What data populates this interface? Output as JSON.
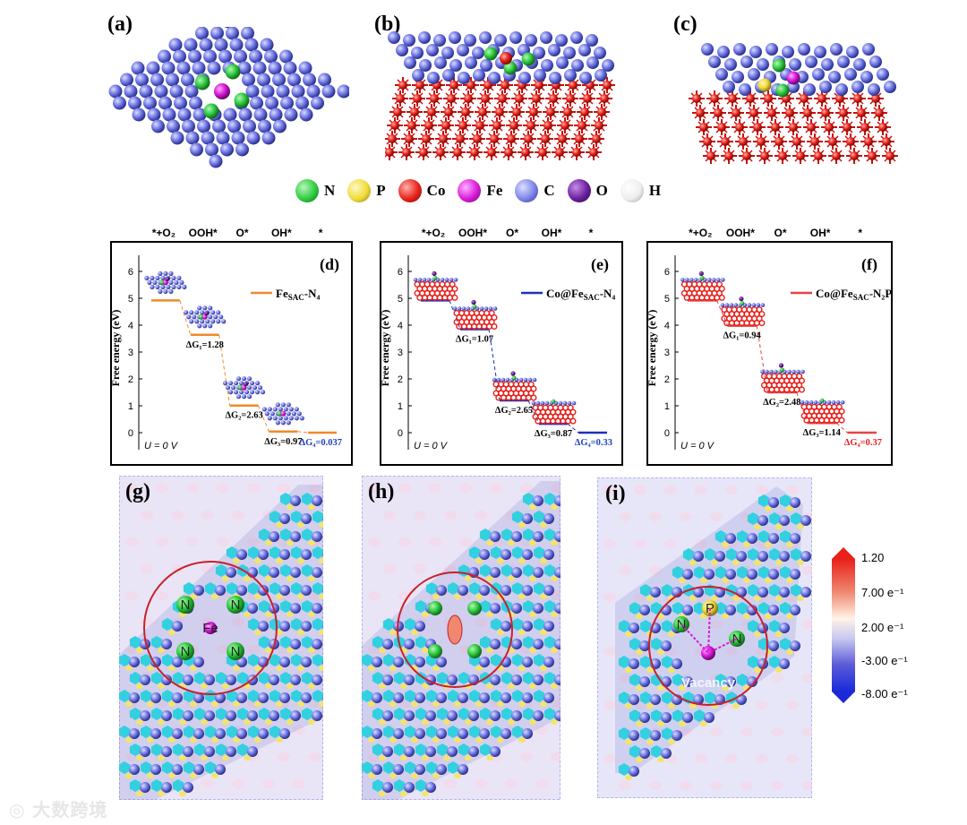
{
  "figure": {
    "panel_labels": [
      "(a)",
      "(b)",
      "(c)",
      "(d)",
      "(e)",
      "(f)",
      "(g)",
      "(h)",
      "(i)"
    ],
    "legend": [
      {
        "symbol": "N",
        "color": "#2ecc40"
      },
      {
        "symbol": "P",
        "color": "#f0dc3a"
      },
      {
        "symbol": "Co",
        "color": "#e8211b"
      },
      {
        "symbol": "Fe",
        "color": "#d81ad8"
      },
      {
        "symbol": "C",
        "color": "#7d84e8"
      },
      {
        "symbol": "O",
        "color": "#6b1f9b"
      },
      {
        "symbol": "H",
        "color": "#f2f2f2"
      }
    ],
    "charge_maps": {
      "g": {
        "atom_labels": [
          "N",
          "N",
          "Fe",
          "N",
          "N"
        ]
      },
      "h": {
        "atom_labels": []
      },
      "i": {
        "atom_labels": [
          "N",
          "P",
          "N"
        ],
        "annotation": "Vacancy"
      }
    },
    "colorbar": {
      "ticks": [
        "1.20",
        "7.00 e⁻¹",
        "2.00 e⁻¹",
        "-3.00 e⁻¹",
        "-8.00 e⁻¹"
      ],
      "colors": [
        "#e8211b",
        "#ffffff",
        "#1a2ad8"
      ]
    },
    "watermark": "大数跨境"
  },
  "chart_data": [
    {
      "id": "d",
      "type": "line",
      "title": "",
      "ylabel": "Free energy (eV)",
      "ylim": [
        -0.3,
        6.6
      ],
      "yticks": [
        0,
        1,
        2,
        3,
        4,
        5,
        6
      ],
      "categories": [
        "*+O₂",
        "OOH*",
        "O*",
        "OH*",
        "*"
      ],
      "series": [
        {
          "name": "FeSAC-N4",
          "values": [
            4.92,
            3.64,
            1.01,
            0.04,
            0.0
          ]
        }
      ],
      "color": "#f0892b",
      "legend": {
        "main": "Fe",
        "sub": "SAC",
        "tail": "-N₄"
      },
      "step_labels": [
        "ΔG₁=1.28",
        "ΔG₂=2.63",
        "ΔG₃=0.97",
        "ΔG₄=0.037"
      ],
      "limiting_color": "#1f3fbf",
      "u_label": "U = 0 V"
    },
    {
      "id": "e",
      "type": "line",
      "title": "",
      "ylabel": "Free energy (eV)",
      "ylim": [
        -0.3,
        6.6
      ],
      "yticks": [
        0,
        1,
        2,
        3,
        4,
        5,
        6
      ],
      "categories": [
        "*+O₂",
        "OOH*",
        "O*",
        "OH*",
        "*"
      ],
      "series": [
        {
          "name": "Co@FeSAC-N4",
          "values": [
            4.92,
            3.85,
            1.2,
            0.33,
            0.0
          ]
        }
      ],
      "color": "#1f2fbf",
      "legend": {
        "main": "Co@Fe",
        "sub": "SAC",
        "tail": "-N₄"
      },
      "step_labels": [
        "ΔG₁=1.07",
        "ΔG₂=2.65",
        "ΔG₃=0.87",
        "ΔG₄=0.33"
      ],
      "limiting_color": "#1f3fbf",
      "u_label": "U = 0 V"
    },
    {
      "id": "f",
      "type": "line",
      "title": "",
      "ylabel": "Free energy (eV)",
      "ylim": [
        -0.3,
        6.6
      ],
      "yticks": [
        0,
        1,
        2,
        3,
        4,
        5,
        6
      ],
      "categories": [
        "*+O₂",
        "OOH*",
        "O*",
        "OH*",
        "*"
      ],
      "series": [
        {
          "name": "Co@FeSAC-N2P",
          "values": [
            4.92,
            3.98,
            1.5,
            0.36,
            0.0
          ]
        }
      ],
      "color": "#e84343",
      "legend": {
        "main": "Co@Fe",
        "sub": "SAC",
        "tail": "-N₂P"
      },
      "step_labels": [
        "ΔG₁=0.94",
        "ΔG₂=2.48",
        "ΔG₃=1.14",
        "ΔG₄=0.37"
      ],
      "limiting_color": "#e82020",
      "u_label": "U = 0 V"
    }
  ]
}
